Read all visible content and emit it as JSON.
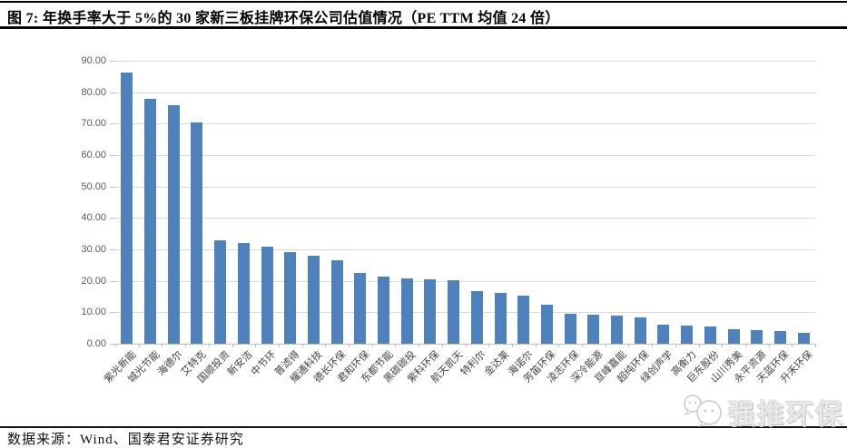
{
  "header": {
    "title": "图 7:  年换手率大于 5%的 30 家新三板挂牌环保公司估值情况（PE TTM 均值 24 倍）"
  },
  "footer": {
    "source": "数据来源：Wind、国泰君安证券研究"
  },
  "watermark": {
    "label": "强推环保",
    "icon": "chat-bubbles-logo",
    "color": "#d9d9d9"
  },
  "chart_data": {
    "type": "bar",
    "title": "年换手率大于 5%的 30 家新三板挂牌环保公司 PE TTM",
    "categories": [
      "紫光新能",
      "城光节能",
      "海德尔",
      "艾特克",
      "国顺投资",
      "新安洁",
      "中节环",
      "普滤得",
      "耀通科技",
      "德长环保",
      "君和环保",
      "东都节能",
      "黑碳碳投",
      "紫科环保",
      "航天凯天",
      "特利尔",
      "金达莱",
      "海诺尔",
      "芳笛环保",
      "凌志环保",
      "深冷能源",
      "亘峰嘉能",
      "超纯环保",
      "绿创声学",
      "高衡力",
      "巨东股份",
      "山川秀美",
      "永平资源",
      "天蓝环保",
      "升禾环保"
    ],
    "values": [
      86.2,
      77.8,
      76.0,
      70.5,
      32.9,
      32.1,
      31.0,
      29.2,
      27.9,
      26.4,
      22.4,
      21.3,
      20.7,
      20.4,
      20.1,
      16.6,
      16.2,
      15.4,
      12.3,
      9.5,
      9.2,
      8.9,
      8.5,
      6.0,
      5.8,
      5.5,
      4.6,
      4.4,
      4.1,
      3.6
    ],
    "xlabel": "",
    "ylabel": "",
    "ylim": [
      0,
      90
    ],
    "ytick_step": 10,
    "yticks": [
      "0.00",
      "10.00",
      "20.00",
      "30.00",
      "40.00",
      "50.00",
      "60.00",
      "70.00",
      "80.00",
      "90.00"
    ],
    "grid": true,
    "legend": false,
    "bar_color": "#4F81BD",
    "gridline_color": "#D9D9D9",
    "axis_color": "#BFBFBF",
    "mean_note": "PE TTM 均值 24 倍"
  }
}
